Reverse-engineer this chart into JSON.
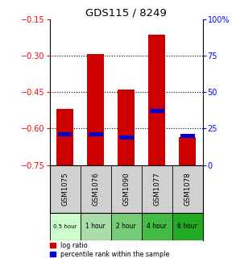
{
  "title": "GDS115 / 8249",
  "samples": [
    "GSM1075",
    "GSM1076",
    "GSM1090",
    "GSM1077",
    "GSM1078"
  ],
  "time_labels": [
    "0.5 hour",
    "1 hour",
    "2 hour",
    "4 hour",
    "6 hour"
  ],
  "time_colors": [
    "#ccffcc",
    "#aaddaa",
    "#77cc77",
    "#44bb44",
    "#22aa22"
  ],
  "log_ratio": [
    -0.52,
    -0.295,
    -0.44,
    -0.215,
    -0.635
  ],
  "log_ratio_bottom": [
    -0.77,
    -0.77,
    -0.77,
    -0.77,
    -0.77
  ],
  "percentile": [
    21,
    21,
    19,
    37,
    20
  ],
  "ylim_left": [
    -0.75,
    -0.15
  ],
  "ylim_right": [
    0,
    100
  ],
  "yticks_left": [
    -0.75,
    -0.6,
    -0.45,
    -0.3,
    -0.15
  ],
  "yticks_right": [
    0,
    25,
    50,
    75,
    100
  ],
  "bar_color": "#cc0000",
  "percentile_color": "#0000cc",
  "label_log": "log ratio",
  "label_pct": "percentile rank within the sample",
  "bar_width": 0.55
}
